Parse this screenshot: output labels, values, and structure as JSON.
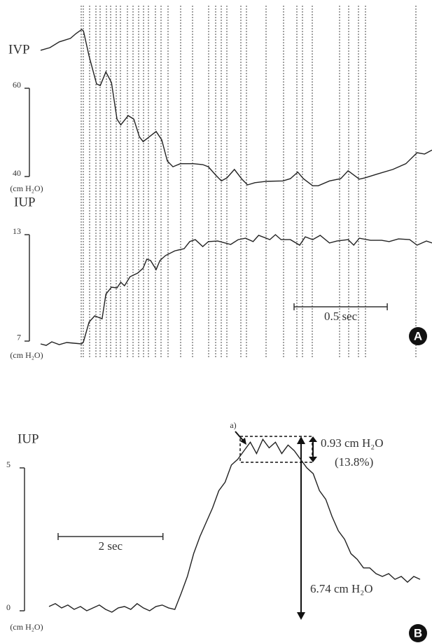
{
  "panels": [
    "A",
    "B"
  ],
  "chart_data": [
    {
      "type": "line",
      "title": "IVP",
      "y_unit": "(cm H₂O)",
      "ylim": [
        36,
        76
      ],
      "yticks": [
        40,
        60
      ],
      "xlim": [
        0,
        2.1
      ],
      "series": [
        {
          "name": "IVP",
          "color": "#222222",
          "x": [
            0,
            0.05,
            0.1,
            0.16,
            0.19,
            0.22,
            0.23,
            0.26,
            0.3,
            0.32,
            0.35,
            0.38,
            0.41,
            0.43,
            0.47,
            0.5,
            0.53,
            0.55,
            0.58,
            0.62,
            0.65,
            0.68,
            0.71,
            0.75,
            0.82,
            0.87,
            0.9,
            0.94,
            0.97,
            1.0,
            1.04,
            1.08,
            1.11,
            1.15,
            1.21,
            1.3,
            1.34,
            1.38,
            1.41,
            1.46,
            1.49,
            1.55,
            1.61,
            1.65,
            1.71,
            1.74,
            1.81,
            1.89,
            1.96,
            2.02,
            2.06,
            2.1
          ],
          "values": [
            68.6,
            69.2,
            70.5,
            71.3,
            72.4,
            73.3,
            73.0,
            67.3,
            61.0,
            60.6,
            63.7,
            61.3,
            53.0,
            51.7,
            53.8,
            53.0,
            49.0,
            47.9,
            48.9,
            50.2,
            48.3,
            43.5,
            42.2,
            42.9,
            42.9,
            42.7,
            42.2,
            40.3,
            39.0,
            39.7,
            41.6,
            39.4,
            38.1,
            38.6,
            38.9,
            39.0,
            39.5,
            41.0,
            39.5,
            37.9,
            37.9,
            39.0,
            39.5,
            41.3,
            39.4,
            39.7,
            40.6,
            41.6,
            42.9,
            45.4,
            45.1,
            46.0
          ]
        }
      ]
    },
    {
      "type": "line",
      "title": "IUP",
      "y_unit": "(cm H₂O)",
      "ylim": [
        6,
        14
      ],
      "yticks": [
        7,
        13
      ],
      "xlim": [
        0,
        2.1
      ],
      "scale_bar": {
        "label": "0.5 sec",
        "value": 0.5
      },
      "series": [
        {
          "name": "IUP",
          "color": "#222222",
          "x": [
            0,
            0.03,
            0.06,
            0.1,
            0.14,
            0.18,
            0.22,
            0.23,
            0.26,
            0.29,
            0.33,
            0.35,
            0.38,
            0.41,
            0.43,
            0.45,
            0.48,
            0.52,
            0.55,
            0.57,
            0.59,
            0.62,
            0.64,
            0.67,
            0.72,
            0.77,
            0.8,
            0.83,
            0.87,
            0.9,
            0.95,
            1.02,
            1.06,
            1.1,
            1.14,
            1.17,
            1.23,
            1.26,
            1.29,
            1.34,
            1.39,
            1.42,
            1.46,
            1.5,
            1.55,
            1.59,
            1.65,
            1.68,
            1.71,
            1.77,
            1.83,
            1.87,
            1.92,
            1.98,
            2.02,
            2.07,
            2.1
          ],
          "values": [
            6.84,
            6.76,
            6.96,
            6.8,
            6.92,
            6.88,
            6.84,
            6.96,
            8.07,
            8.42,
            8.26,
            9.64,
            10.04,
            10.0,
            10.32,
            10.12,
            10.63,
            10.83,
            11.11,
            11.62,
            11.54,
            11.03,
            11.54,
            11.82,
            12.09,
            12.21,
            12.61,
            12.72,
            12.33,
            12.61,
            12.64,
            12.45,
            12.72,
            12.8,
            12.61,
            12.96,
            12.72,
            13.0,
            12.72,
            12.72,
            12.41,
            12.88,
            12.72,
            12.96,
            12.53,
            12.64,
            12.72,
            12.41,
            12.8,
            12.68,
            12.68,
            12.61,
            12.76,
            12.72,
            12.41,
            12.64,
            12.53
          ]
        }
      ]
    },
    {
      "type": "line",
      "title": "IUP",
      "y_unit": "(cm H₂O)",
      "ylim": [
        -0.5,
        7
      ],
      "yticks": [
        0,
        5
      ],
      "xlim": [
        0,
        7.08
      ],
      "scale_bar": {
        "label": "2 sec",
        "value": 2
      },
      "annotations": [
        "a)",
        "0.93 cm H₂O",
        "(13.8%)",
        "6.74 cm H₂O"
      ],
      "series": [
        {
          "name": "IUP",
          "color": "#222222",
          "x": [
            0,
            0.12,
            0.24,
            0.36,
            0.48,
            0.6,
            0.72,
            0.84,
            0.96,
            1.08,
            1.2,
            1.32,
            1.44,
            1.56,
            1.68,
            1.8,
            1.92,
            2.04,
            2.16,
            2.28,
            2.4,
            2.52,
            2.64,
            2.76,
            2.88,
            3.0,
            3.12,
            3.24,
            3.36,
            3.48,
            3.6,
            3.72,
            3.84,
            3.96,
            4.08,
            4.2,
            4.32,
            4.44,
            4.56,
            4.68,
            4.8,
            4.92,
            5.04,
            5.16,
            5.28,
            5.4,
            5.52,
            5.64,
            5.76,
            5.88,
            6.0,
            6.12,
            6.24,
            6.36,
            6.48,
            6.6,
            6.72,
            6.84,
            6.96,
            7.08
          ],
          "values": [
            0.15,
            0.25,
            0.1,
            0.2,
            0.05,
            0.15,
            0.0,
            0.1,
            0.2,
            0.05,
            -0.05,
            0.1,
            0.15,
            0.05,
            0.25,
            0.1,
            0.0,
            0.15,
            0.2,
            0.1,
            0.05,
            0.6,
            1.2,
            2.0,
            2.6,
            3.1,
            3.6,
            4.2,
            4.5,
            5.1,
            5.3,
            5.6,
            5.9,
            5.5,
            6.0,
            5.7,
            5.9,
            5.5,
            5.8,
            5.6,
            5.3,
            5.0,
            4.8,
            4.2,
            3.9,
            3.3,
            2.8,
            2.5,
            2.0,
            1.8,
            1.5,
            1.5,
            1.3,
            1.2,
            1.3,
            1.1,
            1.2,
            1.0,
            1.2,
            1.1
          ]
        }
      ]
    }
  ]
}
